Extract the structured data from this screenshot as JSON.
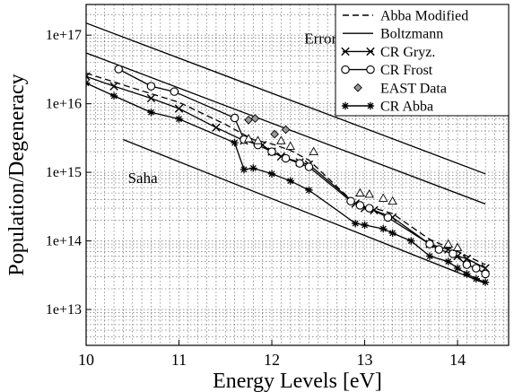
{
  "chart_data": {
    "type": "line",
    "title": "",
    "xlabel": "Energy Levels [eV]",
    "ylabel": "Population/Degeneracy",
    "xlim": [
      10,
      14.55
    ],
    "ylim": [
      3000000000000,
      280000000000000000
    ],
    "yscale": "log",
    "grid": true,
    "grid_style": "dotted",
    "legend_position": "top-right",
    "x_ticks": [
      10,
      11,
      12,
      13,
      14
    ],
    "x_tick_labels": [
      "10",
      "11",
      "12",
      "13",
      "14"
    ],
    "y_ticks": [
      10000000000000,
      100000000000000,
      1000000000000000,
      10000000000000000,
      100000000000000000
    ],
    "y_tick_labels": [
      "1e+13",
      "1e+14",
      "1e+15",
      "1e+16",
      "1e+17"
    ],
    "annotations": [
      {
        "text": "Error 50-60%",
        "x": 12.35,
        "y": 75000000000000000
      },
      {
        "text": "Saha",
        "x": 10.45,
        "y": 700000000000000
      }
    ],
    "series": [
      {
        "name": "Abba Modified",
        "style": "dashed",
        "marker": "none",
        "x": [
          10.0,
          10.5,
          11.0,
          11.5,
          11.8,
          12.0,
          12.2,
          12.4,
          12.85,
          13.0,
          13.3,
          13.7,
          14.0,
          14.3
        ],
        "y": [
          28000000000000000,
          17000000000000000,
          10500000000000000,
          5000000000000000,
          3000000000000000,
          2600000000000000,
          2100000000000000,
          1500000000000000,
          400000000000000,
          330000000000000,
          250000000000000,
          105000000000000,
          70000000000000,
          45000000000000
        ]
      },
      {
        "name": "Boltzmann",
        "style": "solid",
        "marker": "none",
        "x": [
          10.0,
          14.3
        ],
        "y": [
          150000000000000000,
          950000000000000
        ]
      },
      {
        "name": "",
        "style": "solid",
        "marker": "none",
        "x": [
          10.0,
          14.3
        ],
        "y": [
          55000000000000000,
          345000000000000
        ]
      },
      {
        "name": "",
        "style": "solid",
        "marker": "none",
        "x": [
          10.4,
          14.3
        ],
        "y": [
          3000000000000000,
          24000000000000
        ]
      },
      {
        "name": "CR Gryz.",
        "style": "solid",
        "marker": "x",
        "x": [
          10.0,
          10.3,
          10.7,
          11.0,
          11.4,
          11.7,
          11.9,
          12.0,
          12.1,
          12.3,
          12.4,
          12.9,
          13.0,
          13.1,
          13.3,
          13.7,
          13.9,
          14.0,
          14.1,
          14.3
        ],
        "y": [
          25000000000000000,
          18000000000000000,
          12000000000000000,
          8500000000000000,
          4500000000000000,
          2900000000000000,
          2500000000000000,
          2000000000000000,
          1700000000000000,
          1400000000000000,
          1300000000000000,
          350000000000000,
          300000000000000,
          280000000000000,
          220000000000000,
          90000000000000,
          75000000000000,
          60000000000000,
          55000000000000,
          40000000000000
        ]
      },
      {
        "name": "CR Frost",
        "style": "solid",
        "marker": "circle",
        "x": [
          10.35,
          10.7,
          10.95,
          11.6,
          11.7,
          11.85,
          12.0,
          12.15,
          12.3,
          12.4,
          12.85,
          12.95,
          13.05,
          13.25,
          13.7,
          13.8,
          13.95,
          14.1,
          14.2,
          14.3
        ],
        "y": [
          32000000000000000,
          18000000000000000,
          15000000000000000,
          6200000000000000,
          3000000000000000,
          2500000000000000,
          2000000000000000,
          1600000000000000,
          1350000000000000,
          1200000000000000,
          380000000000000,
          330000000000000,
          300000000000000,
          220000000000000,
          90000000000000,
          75000000000000,
          65000000000000,
          45000000000000,
          40000000000000,
          33000000000000
        ]
      },
      {
        "name": "EAST Data",
        "style": "none",
        "marker": "diamond",
        "x": [
          11.75,
          11.82,
          12.03,
          12.15
        ],
        "y": [
          5800000000000000,
          6100000000000000,
          3600000000000000,
          4200000000000000
        ]
      },
      {
        "name": "",
        "style": "none",
        "marker": "triangle",
        "x": [
          11.75,
          11.85,
          12.1,
          12.2,
          12.45,
          12.95,
          13.05,
          13.2,
          13.3,
          13.9,
          14.0
        ],
        "y": [
          3100000000000000,
          2900000000000000,
          2900000000000000,
          2400000000000000,
          2000000000000000,
          500000000000000,
          480000000000000,
          420000000000000,
          380000000000000,
          90000000000000,
          80000000000000
        ]
      },
      {
        "name": "CR Abba",
        "style": "solid",
        "marker": "star",
        "x": [
          10.0,
          10.3,
          10.7,
          11.0,
          11.6,
          11.7,
          11.8,
          12.0,
          12.2,
          12.4,
          12.9,
          13.0,
          13.2,
          13.3,
          13.5,
          13.7,
          13.9,
          14.0,
          14.1,
          14.2,
          14.3
        ],
        "y": [
          20000000000000000,
          13000000000000000,
          7500000000000000,
          6000000000000000,
          2700000000000000,
          1100000000000000,
          1150000000000000,
          950000000000000,
          750000000000000,
          550000000000000,
          180000000000000,
          170000000000000,
          150000000000000,
          130000000000000,
          100000000000000,
          60000000000000,
          50000000000000,
          40000000000000,
          33000000000000,
          28000000000000,
          25000000000000
        ]
      }
    ],
    "legend": [
      {
        "label": "Abba Modified",
        "line": "dashed",
        "marker": "none"
      },
      {
        "label": "Boltzmann",
        "line": "solid",
        "marker": "none"
      },
      {
        "label": "CR Gryz.",
        "line": "solid",
        "marker": "x"
      },
      {
        "label": "CR Frost",
        "line": "solid",
        "marker": "circle"
      },
      {
        "label": "EAST Data",
        "line": "none",
        "marker": "diamond"
      },
      {
        "label": "CR Abba",
        "line": "solid",
        "marker": "star"
      }
    ]
  }
}
